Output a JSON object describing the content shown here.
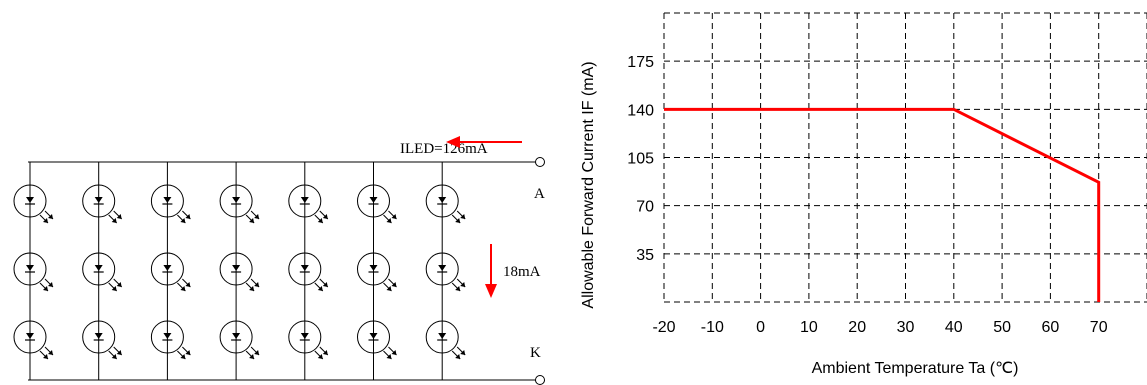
{
  "circuit": {
    "current_label": "ILED=126mA",
    "anode_label": "A",
    "cathode_label": "K",
    "led_current_label": "18mA",
    "columns": 7,
    "rows": 3
  },
  "chart_data": {
    "type": "line",
    "xlabel": "Ambient Temperature Ta (℃)",
    "ylabel": "Allowable Forward Current IF (mA)",
    "x_ticks": [
      "-20",
      "-10",
      "0",
      "10",
      "20",
      "30",
      "40",
      "50",
      "60",
      "70"
    ],
    "y_ticks": [
      "35",
      "70",
      "105",
      "140",
      "175"
    ],
    "xlim": [
      -20,
      80
    ],
    "ylim": [
      0,
      210
    ],
    "grid": true,
    "series": [
      {
        "color": "#ff0000",
        "points": [
          [
            -20,
            140
          ],
          [
            40,
            140
          ],
          [
            70,
            87
          ],
          [
            70,
            0
          ]
        ]
      }
    ]
  },
  "colors": {
    "accent": "#ff0000",
    "line": "#000000"
  }
}
